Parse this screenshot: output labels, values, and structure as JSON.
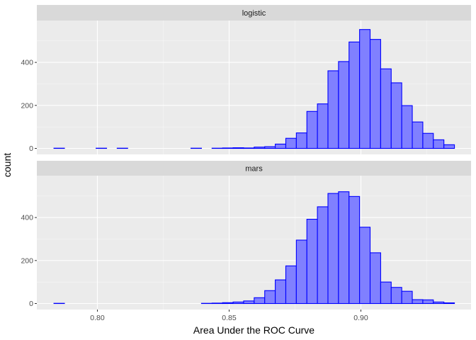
{
  "chart_data": {
    "type": "bar",
    "xlabel": "Area Under the ROC Curve",
    "ylabel": "count",
    "xlim": [
      0.78,
      0.94
    ],
    "ylim": [
      0,
      575
    ],
    "x_ticks": [
      0.8,
      0.85,
      0.9
    ],
    "x_tick_labels": [
      "0.80",
      "0.85",
      "0.90"
    ],
    "y_ticks": [
      0,
      200,
      400
    ],
    "y_tick_labels": [
      "0",
      "200",
      "400"
    ],
    "grid": true,
    "colors": {
      "fill": "#8080ff",
      "outline": "#0000ff",
      "panel": "#ebebeb",
      "strip": "#d9d9d9"
    },
    "bins": {
      "first_center": 0.7855,
      "width": 0.004,
      "count": 38
    },
    "facets": [
      {
        "strip_label": "logistic",
        "values": [
          1,
          0,
          0,
          0,
          1,
          0,
          1,
          0,
          0,
          0,
          0,
          0,
          0,
          1,
          0,
          1,
          2,
          3,
          2,
          6,
          8,
          20,
          47,
          72,
          172,
          207,
          361,
          404,
          495,
          553,
          507,
          370,
          305,
          199,
          123,
          70,
          40,
          17
        ]
      },
      {
        "strip_label": "mars",
        "values": [
          1,
          0,
          0,
          0,
          0,
          0,
          0,
          0,
          0,
          0,
          0,
          0,
          0,
          0,
          1,
          2,
          4,
          7,
          12,
          27,
          60,
          110,
          175,
          295,
          392,
          450,
          512,
          520,
          498,
          355,
          236,
          100,
          75,
          57,
          18,
          17,
          7,
          3
        ]
      }
    ],
    "extra_bins_note": ""
  }
}
